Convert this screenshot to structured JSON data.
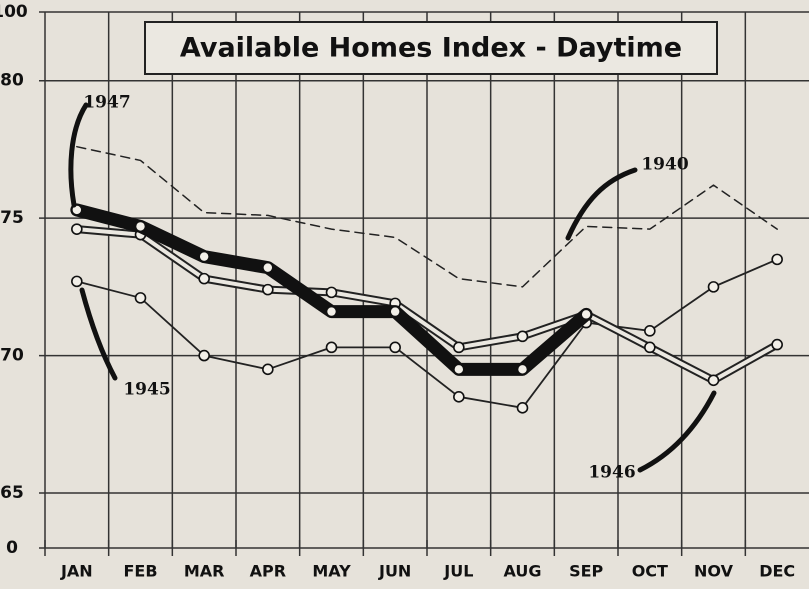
{
  "chart_data": {
    "type": "line",
    "title": "Available Homes Index - Daytime",
    "categories": [
      "JAN",
      "FEB",
      "MAR",
      "APR",
      "MAY",
      "JUN",
      "JUL",
      "AUG",
      "SEP",
      "OCT",
      "NOV",
      "DEC"
    ],
    "series": [
      {
        "name": "1940",
        "color": "#222222",
        "style": "dashed",
        "values": [
          77.6,
          77.1,
          75.2,
          75.1,
          74.6,
          74.3,
          72.8,
          72.5,
          74.7,
          74.6,
          76.2,
          74.6
        ]
      },
      {
        "name": "1945",
        "color": "#222222",
        "style": "thin",
        "values": [
          72.7,
          72.1,
          70.0,
          69.5,
          70.3,
          70.3,
          68.5,
          68.1,
          71.2,
          70.9,
          72.5,
          73.5
        ]
      },
      {
        "name": "1946",
        "color": "#222222",
        "style": "double",
        "values": [
          74.6,
          74.4,
          72.8,
          72.4,
          72.3,
          71.9,
          70.3,
          70.7,
          71.5,
          70.3,
          69.1,
          70.4
        ]
      },
      {
        "name": "1947",
        "color": "#111111",
        "style": "thick",
        "values": [
          75.3,
          74.7,
          73.6,
          73.2,
          71.6,
          71.6,
          69.5,
          69.5,
          71.5,
          null,
          null,
          null
        ]
      }
    ],
    "ylim": [
      63,
      82.5
    ],
    "yticks": [
      65,
      70,
      75,
      80
    ],
    "axis_break_ticks": [
      0,
      100
    ],
    "grid": true
  }
}
